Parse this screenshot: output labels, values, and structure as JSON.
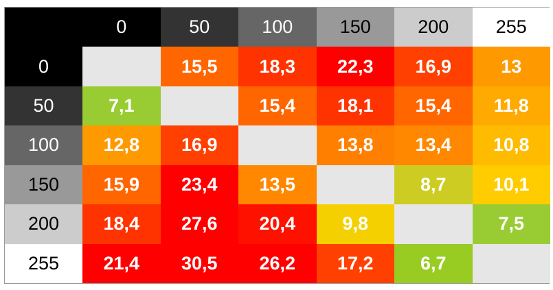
{
  "chart_data": {
    "type": "heatmap",
    "title": "",
    "xlabel": "",
    "ylabel": "",
    "corner": "",
    "x_labels": [
      "0",
      "50",
      "100",
      "150",
      "200",
      "255"
    ],
    "y_labels": [
      "0",
      "50",
      "100",
      "150",
      "200",
      "255"
    ],
    "label_texts": {
      "rows": [
        [
          "",
          "15,5",
          "18,3",
          "22,3",
          "16,9",
          "13"
        ],
        [
          "7,1",
          "",
          "15,4",
          "18,1",
          "15,4",
          "11,8"
        ],
        [
          "12,8",
          "16,9",
          "",
          "13,8",
          "13,4",
          "10,8"
        ],
        [
          "15,9",
          "23,4",
          "13,5",
          "",
          "8,7",
          "10,1"
        ],
        [
          "18,4",
          "27,6",
          "20,4",
          "9,8",
          "",
          "7,5"
        ],
        [
          "21,4",
          "30,5",
          "26,2",
          "17,2",
          "6,7",
          ""
        ]
      ]
    },
    "values": [
      [
        null,
        15.5,
        18.3,
        22.3,
        16.9,
        13.0
      ],
      [
        7.1,
        null,
        15.4,
        18.1,
        15.4,
        11.8
      ],
      [
        12.8,
        16.9,
        null,
        13.8,
        13.4,
        10.8
      ],
      [
        15.9,
        23.4,
        13.5,
        null,
        8.7,
        10.1
      ],
      [
        18.4,
        27.6,
        20.4,
        9.8,
        null,
        7.5
      ],
      [
        21.4,
        30.5,
        26.2,
        17.2,
        6.7,
        null
      ]
    ],
    "header_colors": [
      "#000000",
      "#333333",
      "#666666",
      "#999999",
      "#cccccc",
      "#ffffff"
    ],
    "cell_colors": [
      [
        "#e6e6e6",
        "#ff6600",
        "#ff3300",
        "#ff0000",
        "#ff4000",
        "#ff9900"
      ],
      [
        "#99cc33",
        "#e6e6e6",
        "#ff6600",
        "#ff3300",
        "#ff6600",
        "#ffaa00"
      ],
      [
        "#ff9900",
        "#ff4000",
        "#e6e6e6",
        "#ff8000",
        "#ff8800",
        "#ffbb00"
      ],
      [
        "#ff6600",
        "#ff0000",
        "#ff8800",
        "#e6e6e6",
        "#cccc22",
        "#ffcc00"
      ],
      [
        "#ff3300",
        "#ff0000",
        "#ff1100",
        "#f5d000",
        "#e6e6e6",
        "#99cc33"
      ],
      [
        "#ff0000",
        "#ff0000",
        "#ff0000",
        "#ff4000",
        "#99cc22",
        "#e6e6e6"
      ]
    ]
  }
}
